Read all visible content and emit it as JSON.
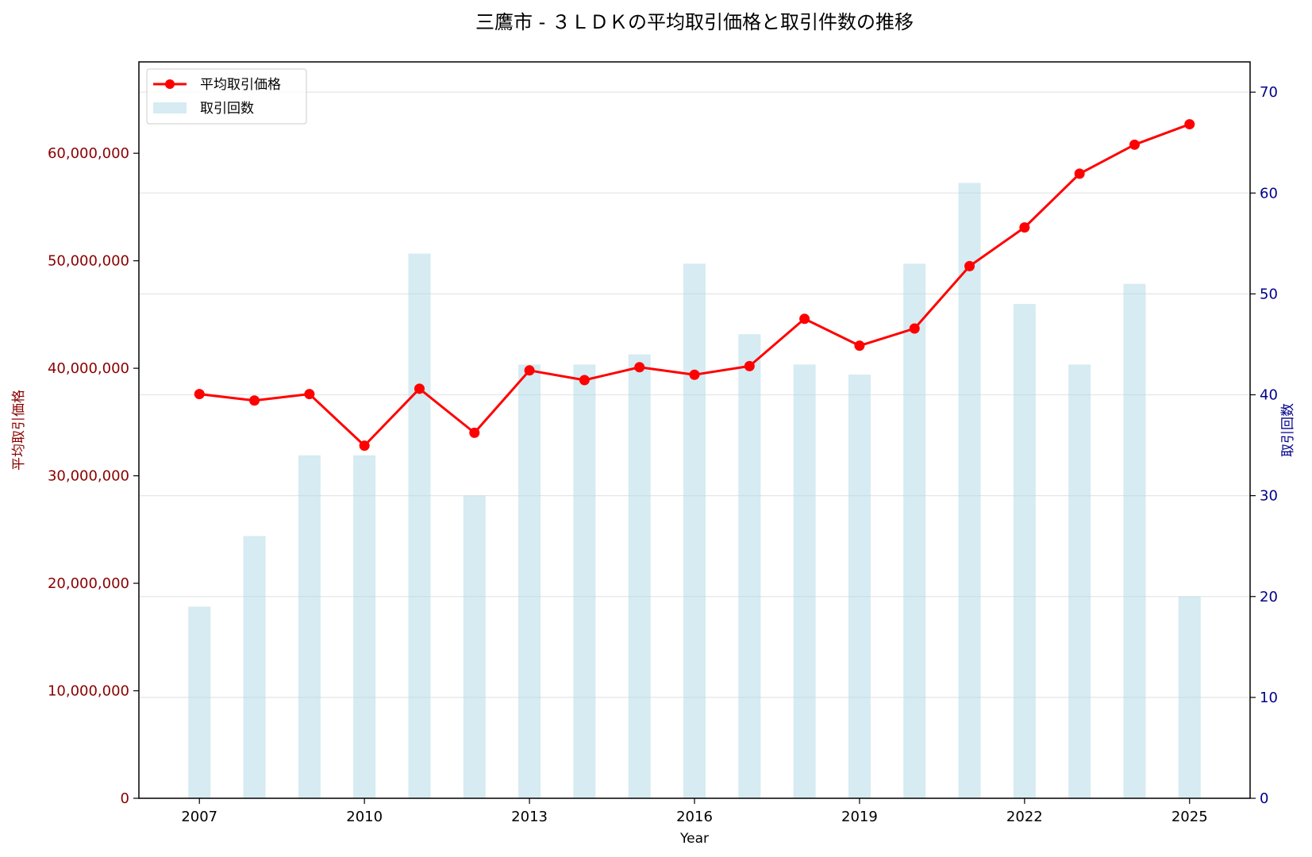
{
  "chart_data": {
    "type": "bar+line",
    "title": "三鷹市 - ３ＬＤＫの平均取引価格と取引件数の推移",
    "xlabel": "Year",
    "ylabel_left": "平均取引価格",
    "ylabel_right": "取引回数",
    "x": [
      2007,
      2008,
      2009,
      2010,
      2011,
      2012,
      2013,
      2014,
      2015,
      2016,
      2017,
      2018,
      2019,
      2020,
      2021,
      2022,
      2023,
      2024,
      2025
    ],
    "x_ticks": [
      "2007",
      "2010",
      "2013",
      "2016",
      "2019",
      "2022",
      "2025"
    ],
    "x_tick_values": [
      2007,
      2010,
      2013,
      2016,
      2019,
      2022,
      2025
    ],
    "xlim": [
      2005.9,
      2026.1
    ],
    "ylim_left": [
      0,
      68500000
    ],
    "ylim_right": [
      0,
      73
    ],
    "left_ticks": [
      "0",
      "10,000,000",
      "20,000,000",
      "30,000,000",
      "40,000,000",
      "50,000,000",
      "60,000,000"
    ],
    "left_tick_values": [
      0,
      10000000,
      20000000,
      30000000,
      40000000,
      50000000,
      60000000
    ],
    "right_ticks": [
      "0",
      "10",
      "20",
      "30",
      "40",
      "50",
      "60",
      "70"
    ],
    "right_tick_values": [
      0,
      10,
      20,
      30,
      40,
      50,
      60,
      70
    ],
    "series": [
      {
        "name": "平均取引価格",
        "type": "line",
        "axis": "left",
        "color": "#ff0000",
        "values": [
          37600000,
          37000000,
          37600000,
          32800000,
          38100000,
          34000000,
          39800000,
          38900000,
          40100000,
          39400000,
          40200000,
          44600000,
          42100000,
          43700000,
          49500000,
          53100000,
          58100000,
          60800000,
          62700000
        ]
      },
      {
        "name": "取引回数",
        "type": "bar",
        "axis": "right",
        "color": "#add8e6",
        "values": [
          19,
          26,
          34,
          34,
          54,
          30,
          43,
          43,
          44,
          53,
          46,
          43,
          42,
          53,
          61,
          49,
          43,
          51,
          20
        ]
      }
    ],
    "legend": "top-left",
    "grid": "horizontal"
  }
}
